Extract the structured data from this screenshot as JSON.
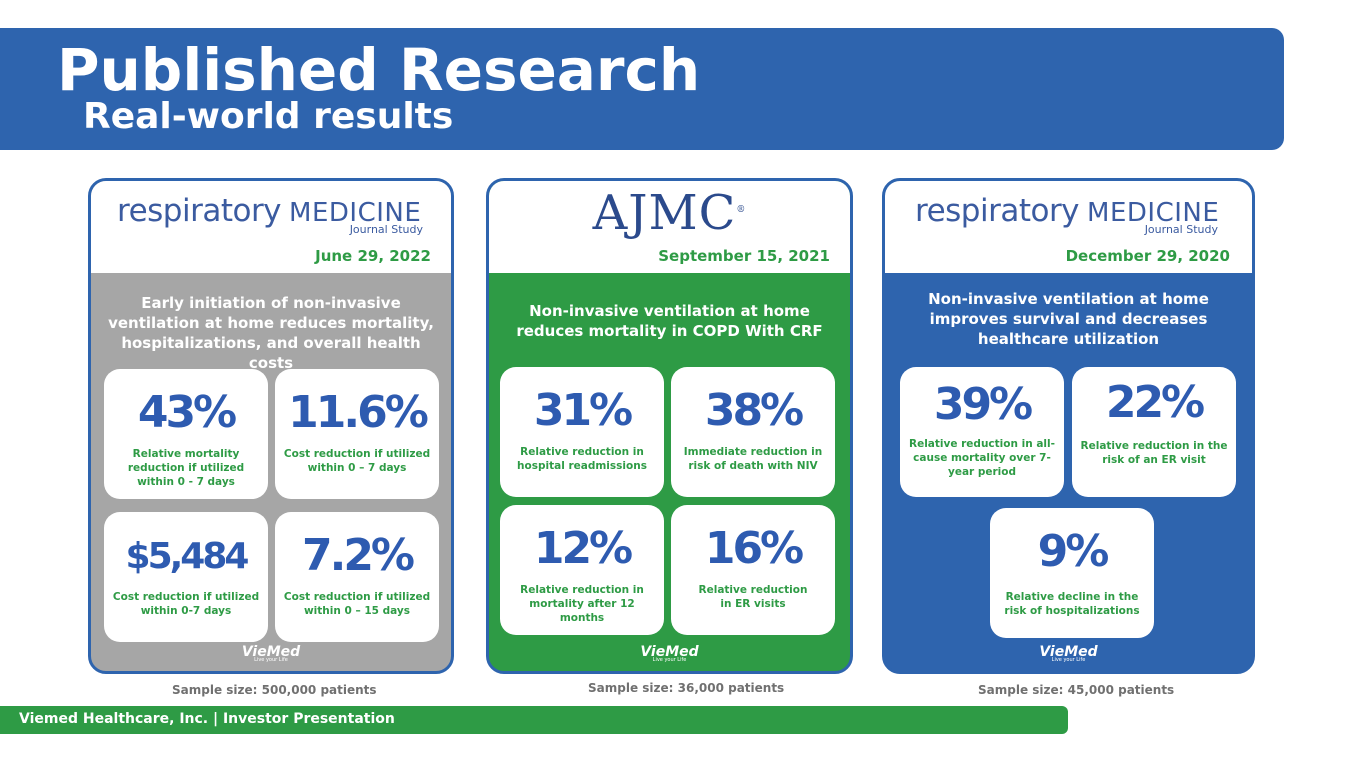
{
  "header": {
    "title": "Published Research",
    "subtitle": "Real-world results"
  },
  "colors": {
    "blue": "#2e64ae",
    "green": "#2e9b45",
    "gray": "#a6a6a6"
  },
  "panels": [
    {
      "logo": "respiratory",
      "logo_b": "MEDICINE",
      "journal": "Journal Study",
      "date": "June 29, 2022",
      "blurb": "Early initiation of non-invasive ventilation at home reduces mortality, hospitalizations, and overall health costs",
      "cards": [
        {
          "value": "43%",
          "desc": "Relative mortality reduction if utilized within 0 - 7 days"
        },
        {
          "value": "11.6%",
          "desc": "Cost reduction if utilized within 0 – 7 days"
        },
        {
          "value": "$5,484",
          "desc": "Cost reduction if utilized within 0-7 days"
        },
        {
          "value": "7.2%",
          "desc": "Cost reduction if utilized within 0 – 15 days"
        }
      ],
      "brand": "VieMed",
      "brand_tag": "Live your Life",
      "sample": "Sample size: 500,000 patients"
    },
    {
      "logo": "AJMC",
      "date": "September 15, 2021",
      "blurb": "Non-invasive ventilation at home reduces mortality in COPD With CRF",
      "cards": [
        {
          "value": "31%",
          "desc": "Relative reduction in hospital readmissions"
        },
        {
          "value": "38%",
          "desc": "Immediate reduction in risk of death with NIV"
        },
        {
          "value": "12%",
          "desc": "Relative reduction in mortality after 12 months"
        },
        {
          "value": "16%",
          "desc": "Relative reduction in ER visits"
        }
      ],
      "brand": "VieMed",
      "brand_tag": "Live your Life",
      "sample": "Sample size: 36,000 patients"
    },
    {
      "logo": "respiratory",
      "logo_b": "MEDICINE",
      "journal": "Journal Study",
      "date": "December 29, 2020",
      "blurb": "Non-invasive ventilation at home improves survival and decreases healthcare utilization",
      "cards": [
        {
          "value": "39%",
          "desc": "Relative reduction in all-cause mortality over 7-year period"
        },
        {
          "value": "22%",
          "desc": "Relative reduction in the risk of an ER visit"
        },
        {
          "value": "9%",
          "desc": "Relative decline in the risk of hospitalizations"
        }
      ],
      "brand": "VieMed",
      "brand_tag": "Live your Life",
      "sample": "Sample size: 45,000 patients"
    }
  ],
  "footer": "Viemed Healthcare, Inc. | Investor Presentation"
}
